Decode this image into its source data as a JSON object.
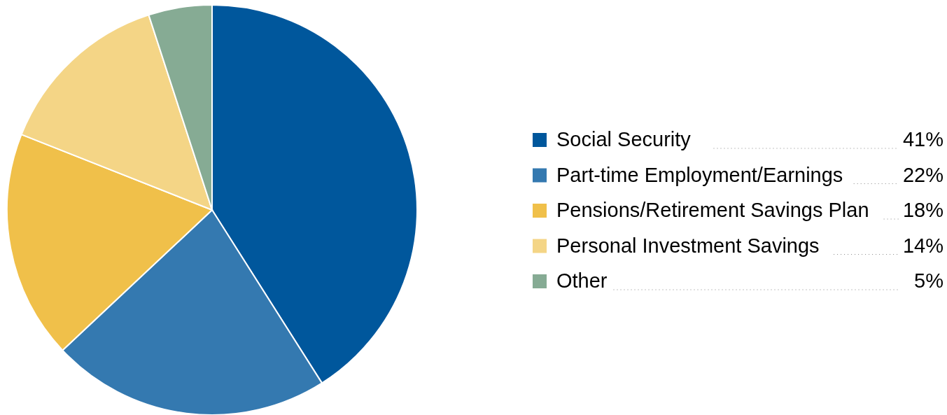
{
  "chart_data": {
    "type": "pie",
    "categories": [
      "Social Security",
      "Part-time Employment/Earnings",
      "Pensions/Retirement Savings Plan",
      "Personal Investment Savings",
      "Other"
    ],
    "values": [
      41,
      22,
      18,
      14,
      5
    ],
    "colors": [
      "#00579c",
      "#3479b0",
      "#f0c04a",
      "#f4d586",
      "#86ab94"
    ],
    "value_labels": [
      "41%",
      "22%",
      "18%",
      "14%",
      "5%"
    ],
    "legend": "right"
  }
}
